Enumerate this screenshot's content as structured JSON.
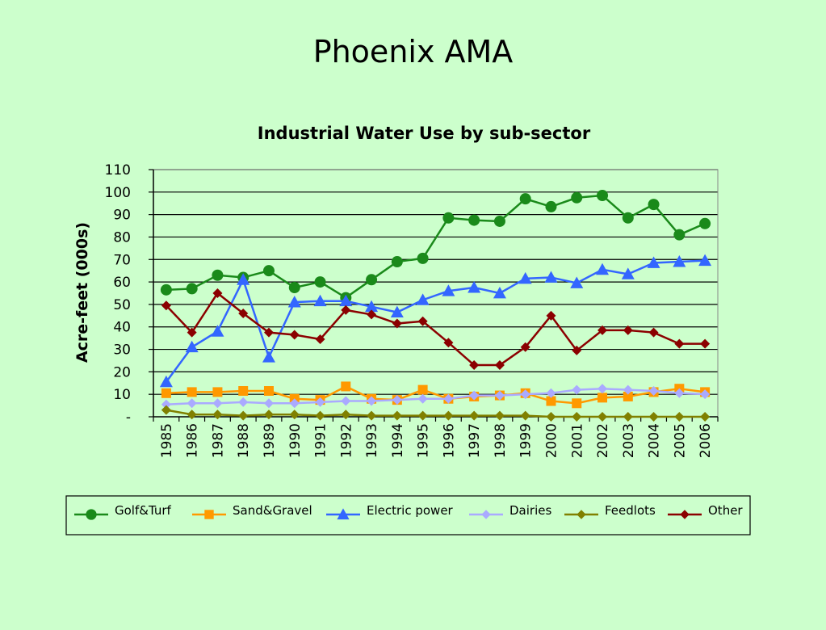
{
  "slide": {
    "title": "Phoenix AMA"
  },
  "chart_data": {
    "type": "line",
    "title": "Industrial Water Use by sub-sector",
    "xlabel": "",
    "ylabel": "Acre-feet (000s)",
    "ylim": [
      0,
      110
    ],
    "yticks": [
      0,
      10,
      20,
      30,
      40,
      50,
      60,
      70,
      80,
      90,
      100,
      110
    ],
    "ytick_labels": [
      "-",
      "10",
      "20",
      "30",
      "40",
      "50",
      "60",
      "70",
      "80",
      "90",
      "100",
      "110"
    ],
    "grid": true,
    "legend_position": "bottom",
    "categories": [
      "1985",
      "1986",
      "1987",
      "1988",
      "1989",
      "1990",
      "1991",
      "1992",
      "1993",
      "1994",
      "1995",
      "1996",
      "1997",
      "1998",
      "1999",
      "2000",
      "2001",
      "2002",
      "2003",
      "2004",
      "2005",
      "2006"
    ],
    "series": [
      {
        "name": "Golf&Turf",
        "color": "#1a8a1a",
        "marker": "circle",
        "values": [
          56.5,
          57,
          63,
          62,
          65,
          57.5,
          60,
          53,
          61,
          69,
          70.5,
          88.5,
          87.5,
          87,
          97,
          93.5,
          97.5,
          98.5,
          88.5,
          94.5,
          81,
          86
        ]
      },
      {
        "name": "Sand&Gravel",
        "color": "#ff9900",
        "marker": "square",
        "values": [
          10.5,
          11,
          11,
          11.5,
          11.5,
          8,
          7.5,
          13.5,
          8,
          7.5,
          12,
          8,
          9,
          9.5,
          10.5,
          7,
          6,
          8.5,
          9,
          11,
          12.5,
          11
        ]
      },
      {
        "name": "Electric power",
        "color": "#3366ff",
        "marker": "triangle",
        "values": [
          15.5,
          31,
          38,
          61,
          26.5,
          51,
          51.5,
          51.5,
          49,
          46.5,
          52,
          56,
          57.5,
          55,
          61.5,
          62,
          59.5,
          65.5,
          63.5,
          68.5,
          69,
          69.5
        ]
      },
      {
        "name": "Dairies",
        "color": "#aaaaff",
        "marker": "diamond",
        "values": [
          5.5,
          6,
          6,
          6.5,
          6,
          6,
          6.5,
          7,
          7,
          7.5,
          8,
          8,
          9.5,
          9.5,
          10,
          10.5,
          12,
          12.5,
          12,
          11.5,
          10.5,
          10
        ]
      },
      {
        "name": "Feedlots",
        "color": "#808000",
        "marker": "diamond",
        "values": [
          3,
          1,
          1,
          0.5,
          1,
          1,
          0.5,
          1,
          0.5,
          0.5,
          0.5,
          0.5,
          0.5,
          0.5,
          0.5,
          0,
          0,
          0,
          0,
          0,
          0,
          0
        ]
      },
      {
        "name": "Other",
        "color": "#8b0000",
        "marker": "diamond",
        "values": [
          49.5,
          37.5,
          55,
          46,
          37.5,
          36.5,
          34.5,
          47.5,
          45.5,
          41.5,
          42.5,
          33,
          23,
          23,
          31,
          45,
          29.5,
          38.5,
          38.5,
          37.5,
          32.5,
          32.5
        ]
      }
    ]
  }
}
